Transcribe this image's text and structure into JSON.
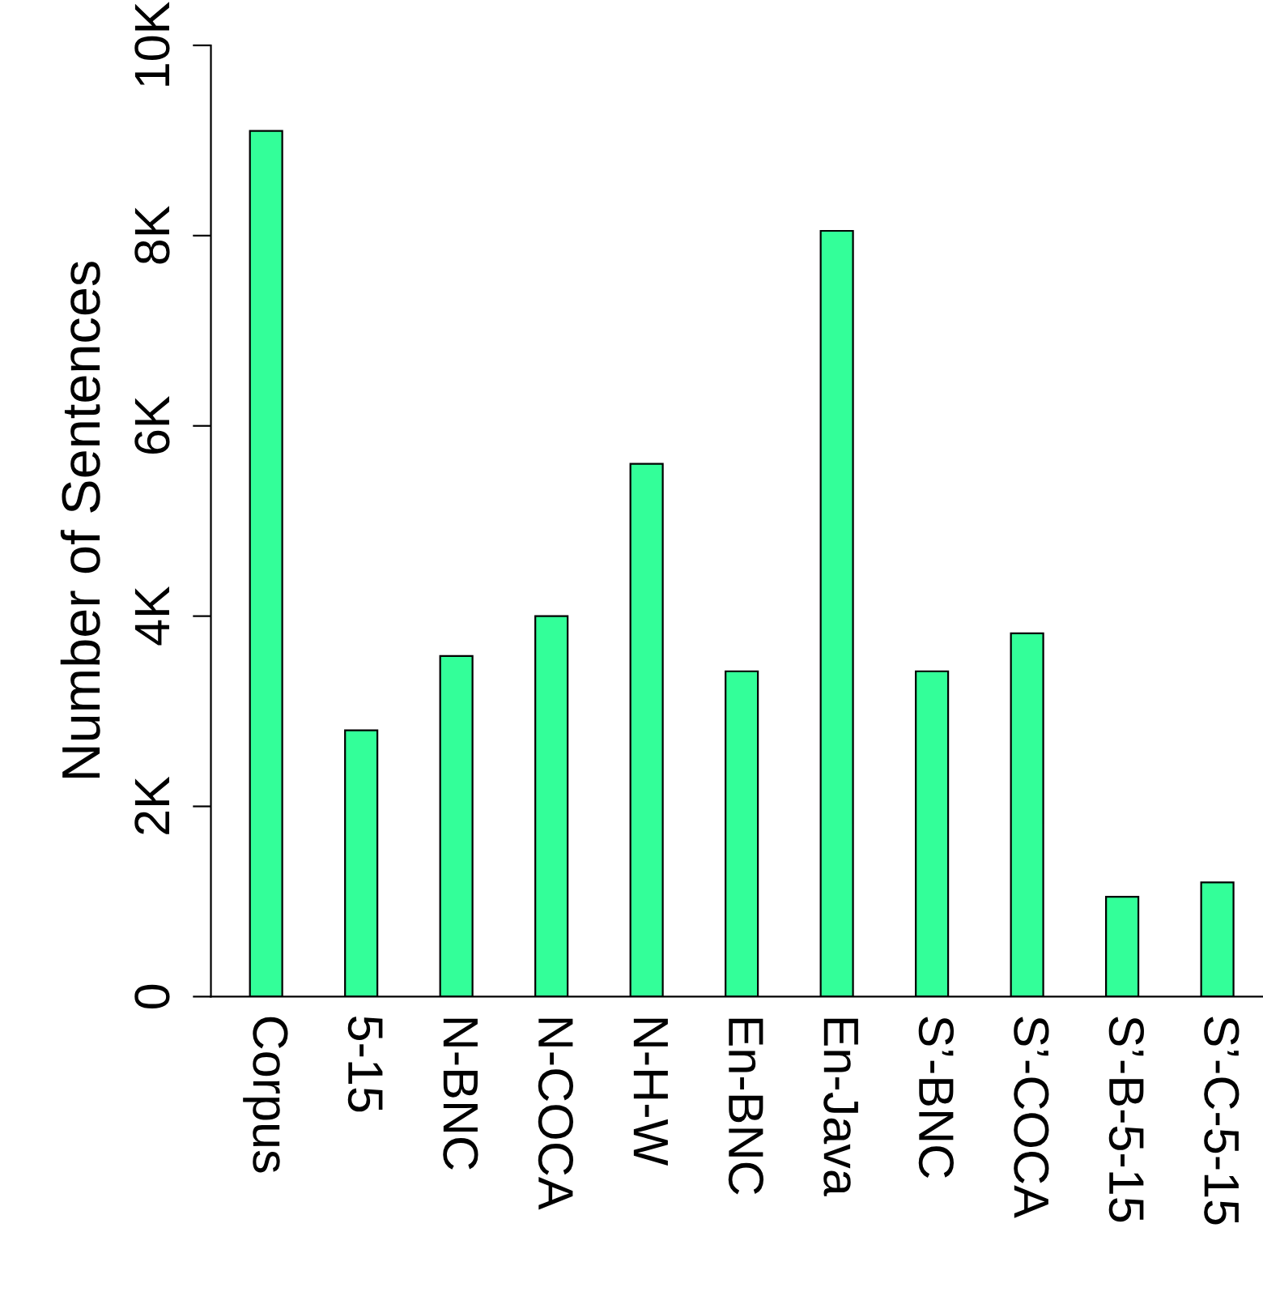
{
  "chart_data": {
    "type": "bar",
    "ylabel": "Number of Sentences",
    "categories": [
      "Corpus",
      "5-15",
      "N-BNC",
      "N-COCA",
      "N-H-W",
      "En-BNC",
      "En-Java",
      "S’-BNC",
      "S’-COCA",
      "S’-B-5-15",
      "S’-C-5-15"
    ],
    "values": [
      9100,
      2800,
      3580,
      4000,
      5600,
      3420,
      8050,
      3420,
      3820,
      1050,
      1200
    ],
    "color": "#33ff99",
    "ylim": [
      0,
      10000
    ],
    "yticks": [
      {
        "value": 0,
        "label": "0"
      },
      {
        "value": 2000,
        "label": "2K"
      },
      {
        "value": 4000,
        "label": "4K"
      },
      {
        "value": 6000,
        "label": "6K"
      },
      {
        "value": 8000,
        "label": "8K"
      },
      {
        "value": 10000,
        "label": "10K"
      }
    ],
    "grid": false,
    "legend": false
  }
}
